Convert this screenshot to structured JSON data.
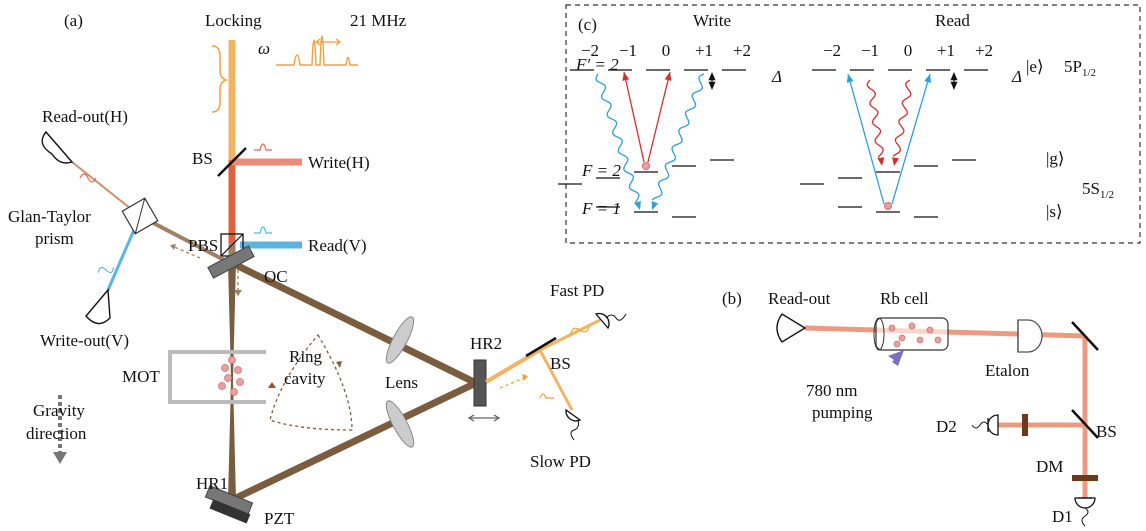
{
  "panel_a": {
    "label": "(a)",
    "locking": "Locking",
    "spacing": "21 MHz",
    "omega": "ω",
    "bs_1": "BS",
    "write_h": "Write(H)",
    "pbs": "PBS",
    "read_v": "Read(V)",
    "read_out_h": "Read-out(H)",
    "prism": [
      "Glan-Taylor",
      "prism"
    ],
    "oc": "OC",
    "write_out_v": "Write-out(V)",
    "mot": "MOT",
    "ring_cavity": [
      "Ring",
      "cavity"
    ],
    "lens": "Lens",
    "hr2": "HR2",
    "bs_2": "BS",
    "fast_pd": "Fast PD",
    "slow_pd": "Slow PD",
    "gravity": [
      "Gravity",
      "direction"
    ],
    "hr1": "HR1",
    "pzt": "PZT"
  },
  "panel_b": {
    "label": "(b)",
    "read_out": "Read-out",
    "rb_cell": "Rb cell",
    "pumping": [
      "780 nm",
      "pumping"
    ],
    "etalon": "Etalon",
    "d2": "D2",
    "bs": "BS",
    "dm": "DM",
    "d1": "D1"
  },
  "panel_c": {
    "label": "(c)",
    "write": "Write",
    "read": "Read",
    "f_prime": "F′ = 2",
    "f2": "F = 2",
    "f1": "F = 1",
    "m_labels": [
      "−2",
      "−1",
      "0",
      "+1",
      "+2"
    ],
    "delta": "Δ",
    "e_state": "|e⟩",
    "p_level": {
      "base": "5P",
      "sub": "1/2"
    },
    "g_state": "|g⟩",
    "s_state": "|s⟩",
    "s_level": {
      "base": "5S",
      "sub": "1/2"
    }
  }
}
